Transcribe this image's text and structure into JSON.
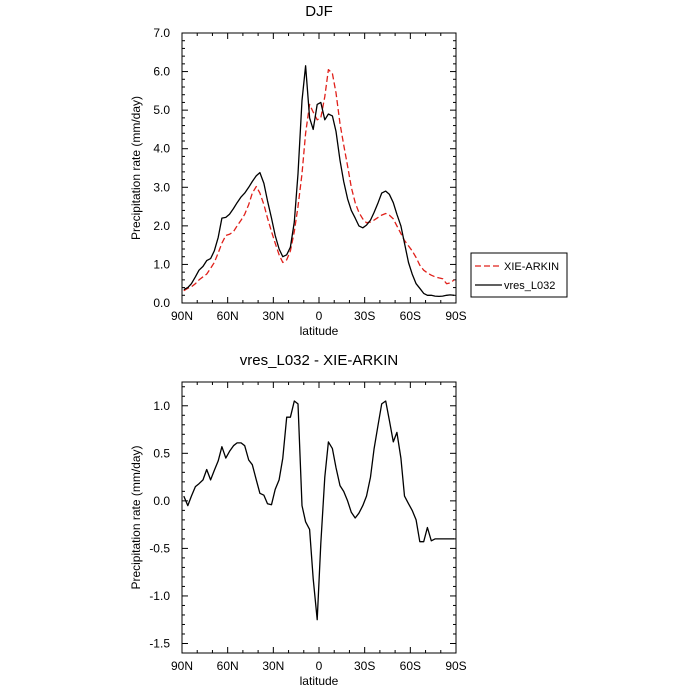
{
  "chart_data": [
    {
      "type": "line",
      "title": "DJF",
      "xlabel": "latitude",
      "ylabel": "Precipitation rate (mm/day)",
      "ylim": [
        0,
        7
      ],
      "xlim": [
        90,
        -90
      ],
      "x_tick_values": [
        90,
        60,
        30,
        0,
        -30,
        -60,
        -90
      ],
      "x_tick_labels": [
        "90N",
        "60N",
        "30N",
        "0",
        "30S",
        "60S",
        "90S"
      ],
      "y_tick_values": [
        0,
        1,
        2,
        3,
        4,
        5,
        6,
        7
      ],
      "y_tick_labels": [
        "0.0",
        "1.0",
        "2.0",
        "3.0",
        "4.0",
        "5.0",
        "6.0",
        "7.0"
      ],
      "legend": {
        "placement": "right",
        "entries": [
          "XIE-ARKIN",
          "vres_L032"
        ]
      },
      "series": [
        {
          "name": "XIE-ARKIN",
          "color": "#e0201a",
          "dash": "dashed",
          "x": [
            88.8,
            86.2,
            83.8,
            81.2,
            78.8,
            76.2,
            73.8,
            71.2,
            68.8,
            66.2,
            63.8,
            61.2,
            58.8,
            56.2,
            53.8,
            51.2,
            48.8,
            46.2,
            43.8,
            41.2,
            38.8,
            36.2,
            33.8,
            31.2,
            28.8,
            26.2,
            23.8,
            21.2,
            18.8,
            16.2,
            13.8,
            11.2,
            8.8,
            6.2,
            3.8,
            1.2,
            -1.2,
            -3.8,
            -6.2,
            -8.8,
            -11.2,
            -13.8,
            -16.2,
            -18.8,
            -21.2,
            -23.8,
            -26.2,
            -28.8,
            -31.2,
            -33.8,
            -36.2,
            -38.8,
            -41.2,
            -43.8,
            -46.2,
            -48.8,
            -51.2,
            -53.8,
            -56.2,
            -58.8,
            -61.2,
            -63.8,
            -66.2,
            -68.8,
            -71.2,
            -73.8,
            -76.2,
            -78.8,
            -81.2,
            -83.8,
            -86.2,
            -88.8
          ],
          "values": [
            0.32,
            0.38,
            0.42,
            0.5,
            0.6,
            0.68,
            0.75,
            0.9,
            1.05,
            1.3,
            1.55,
            1.75,
            1.78,
            1.85,
            2.0,
            2.15,
            2.3,
            2.55,
            2.85,
            3.02,
            2.85,
            2.55,
            2.2,
            1.85,
            1.55,
            1.25,
            1.05,
            1.12,
            1.35,
            1.85,
            2.5,
            3.35,
            4.4,
            5.15,
            4.95,
            4.75,
            4.8,
            5.35,
            6.05,
            5.95,
            5.45,
            4.65,
            4.1,
            3.55,
            3.0,
            2.6,
            2.35,
            2.18,
            2.08,
            2.1,
            2.15,
            2.22,
            2.28,
            2.32,
            2.28,
            2.18,
            2.0,
            1.8,
            1.62,
            1.48,
            1.35,
            1.18,
            0.98,
            0.85,
            0.78,
            0.72,
            0.68,
            0.65,
            0.63,
            0.5,
            0.52,
            0.6
          ]
        },
        {
          "name": "vres_L032",
          "color": "#000000",
          "dash": "solid",
          "x": [
            88.8,
            86.2,
            83.8,
            81.2,
            78.8,
            76.2,
            73.8,
            71.2,
            68.8,
            66.2,
            63.8,
            61.2,
            58.8,
            56.2,
            53.8,
            51.2,
            48.8,
            46.2,
            43.8,
            41.2,
            38.8,
            36.2,
            33.8,
            31.2,
            28.8,
            26.2,
            23.8,
            21.2,
            18.8,
            16.2,
            13.8,
            11.2,
            8.8,
            6.2,
            3.8,
            1.2,
            -1.2,
            -3.8,
            -6.2,
            -8.8,
            -11.2,
            -13.8,
            -16.2,
            -18.8,
            -21.2,
            -23.8,
            -26.2,
            -28.8,
            -31.2,
            -33.8,
            -36.2,
            -38.8,
            -41.2,
            -43.8,
            -46.2,
            -48.8,
            -51.2,
            -53.8,
            -56.2,
            -58.8,
            -61.2,
            -63.8,
            -66.2,
            -68.8,
            -71.2,
            -73.8,
            -76.2,
            -78.8,
            -81.2,
            -83.8,
            -86.2,
            -88.8
          ],
          "values": [
            0.35,
            0.4,
            0.5,
            0.68,
            0.85,
            0.95,
            1.1,
            1.15,
            1.35,
            1.7,
            2.2,
            2.22,
            2.3,
            2.45,
            2.6,
            2.75,
            2.85,
            3.0,
            3.15,
            3.3,
            3.38,
            3.1,
            2.65,
            2.2,
            1.75,
            1.4,
            1.2,
            1.25,
            1.45,
            2.1,
            3.35,
            5.25,
            6.15,
            4.8,
            4.5,
            5.15,
            5.2,
            4.75,
            4.9,
            4.85,
            4.45,
            3.7,
            3.15,
            2.7,
            2.4,
            2.2,
            2.0,
            1.95,
            2.02,
            2.15,
            2.35,
            2.6,
            2.85,
            2.9,
            2.82,
            2.6,
            2.3,
            2.0,
            1.55,
            1.05,
            0.75,
            0.5,
            0.38,
            0.25,
            0.2,
            0.2,
            0.18,
            0.17,
            0.18,
            0.2,
            0.21,
            0.2
          ]
        }
      ]
    },
    {
      "type": "line",
      "title": "vres_L032 - XIE-ARKIN",
      "xlabel": "latitude",
      "ylabel": "Precipitation rate (mm/day)",
      "ylim": [
        -1.6,
        1.25
      ],
      "xlim": [
        90,
        -90
      ],
      "x_tick_values": [
        90,
        60,
        30,
        0,
        -30,
        -60,
        -90
      ],
      "x_tick_labels": [
        "90N",
        "60N",
        "30N",
        "0",
        "30S",
        "60S",
        "90S"
      ],
      "y_tick_values": [
        1.0,
        0.5,
        0.0,
        -0.5,
        -1.0,
        -1.5
      ],
      "y_tick_labels": [
        "1.0",
        "0.5",
        "0.0",
        "-0.5",
        "-1.0",
        "-1.5"
      ],
      "series": [
        {
          "name": "vres_L032 - XIE-ARKIN",
          "color": "#000000",
          "dash": "solid",
          "x": [
            88.8,
            86.2,
            83.8,
            81.2,
            78.8,
            76.2,
            73.8,
            71.2,
            68.8,
            66.2,
            63.8,
            61.2,
            58.8,
            56.2,
            53.8,
            51.2,
            48.8,
            46.2,
            43.8,
            41.2,
            38.8,
            36.2,
            33.8,
            31.2,
            28.8,
            26.2,
            23.8,
            21.2,
            18.8,
            16.2,
            13.8,
            11.2,
            8.8,
            6.2,
            3.8,
            1.2,
            -1.2,
            -3.8,
            -6.2,
            -8.8,
            -11.2,
            -13.8,
            -16.2,
            -18.8,
            -21.2,
            -23.8,
            -26.2,
            -28.8,
            -31.2,
            -33.8,
            -36.2,
            -38.8,
            -41.2,
            -43.8,
            -46.2,
            -48.8,
            -51.2,
            -53.8,
            -56.2,
            -58.8,
            -61.2,
            -63.8,
            -66.2,
            -68.8,
            -71.2,
            -73.8,
            -76.2,
            -78.8,
            -81.2,
            -83.8,
            -86.2,
            -88.8
          ],
          "values": [
            0.05,
            -0.05,
            0.05,
            0.15,
            0.18,
            0.22,
            0.33,
            0.22,
            0.32,
            0.42,
            0.57,
            0.45,
            0.52,
            0.58,
            0.61,
            0.61,
            0.58,
            0.43,
            0.38,
            0.22,
            0.08,
            0.06,
            -0.03,
            -0.04,
            0.12,
            0.22,
            0.45,
            0.88,
            0.88,
            1.05,
            1.02,
            -0.05,
            -0.22,
            -0.3,
            -0.82,
            -1.25,
            -0.45,
            0.25,
            0.62,
            0.55,
            0.35,
            0.16,
            0.1,
            0.0,
            -0.12,
            -0.18,
            -0.13,
            -0.05,
            0.05,
            0.25,
            0.55,
            0.8,
            1.02,
            1.05,
            0.85,
            0.62,
            0.72,
            0.45,
            0.05,
            -0.03,
            -0.1,
            -0.2,
            -0.43,
            -0.43,
            -0.28,
            -0.42,
            -0.4,
            -0.4,
            -0.4,
            -0.4,
            -0.4,
            -0.4
          ]
        }
      ]
    }
  ]
}
